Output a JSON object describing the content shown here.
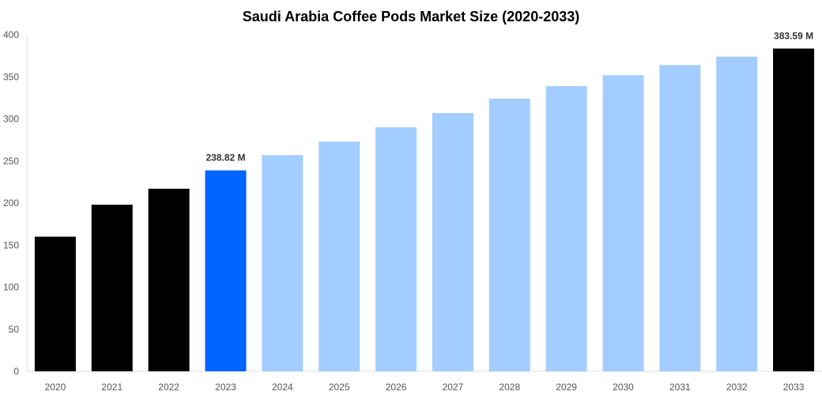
{
  "chart_data": {
    "type": "bar",
    "title": "Saudi Arabia Coffee Pods Market Size (2020-2033)",
    "xlabel": "",
    "ylabel": "",
    "ylim": [
      0,
      400
    ],
    "yticks": [
      0,
      50,
      100,
      150,
      200,
      250,
      300,
      350,
      400
    ],
    "grid": false,
    "categories": [
      "2020",
      "2021",
      "2022",
      "2023",
      "2024",
      "2025",
      "2026",
      "2027",
      "2028",
      "2029",
      "2030",
      "2031",
      "2032",
      "2033"
    ],
    "values": [
      160,
      198,
      217,
      238.82,
      257,
      273,
      290,
      307,
      324,
      339,
      352,
      364,
      374,
      383.59
    ],
    "bar_colors": [
      "#000000",
      "#000000",
      "#000000",
      "#0066ff",
      "#a3cdff",
      "#a3cdff",
      "#a3cdff",
      "#a3cdff",
      "#a3cdff",
      "#a3cdff",
      "#a3cdff",
      "#a3cdff",
      "#a3cdff",
      "#000000"
    ],
    "data_labels": [
      {
        "category": "2023",
        "text": "238.82 M"
      },
      {
        "category": "2033",
        "text": "383.59 M"
      }
    ]
  }
}
